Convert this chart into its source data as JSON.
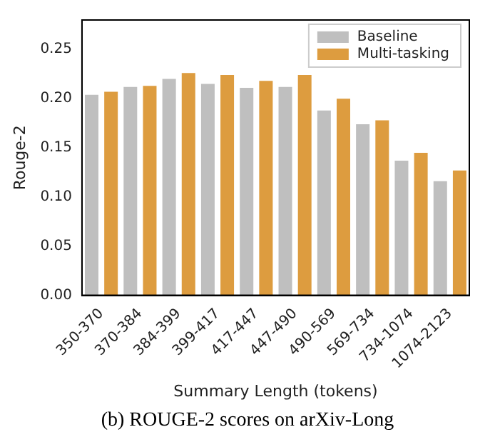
{
  "chart_data": {
    "type": "bar",
    "ylabel": "Rouge-2",
    "xlabel": "Summary Length (tokens)",
    "categories": [
      "350-370",
      "370-384",
      "384-399",
      "399-417",
      "417-447",
      "447-490",
      "490-569",
      "569-734",
      "734-1074",
      "1074-2123"
    ],
    "series": [
      {
        "name": "Baseline",
        "color": "#bfbfbf",
        "values": [
          0.204,
          0.212,
          0.22,
          0.215,
          0.211,
          0.212,
          0.188,
          0.174,
          0.137,
          0.116
        ]
      },
      {
        "name": "Multi-tasking",
        "color": "#dd9c3f",
        "values": [
          0.207,
          0.213,
          0.226,
          0.224,
          0.218,
          0.224,
          0.2,
          0.178,
          0.145,
          0.127
        ]
      }
    ],
    "ylim": [
      0,
      0.28
    ],
    "yticks": [
      {
        "value": 0,
        "label": "0.00"
      },
      {
        "value": 0.05,
        "label": "0.05"
      },
      {
        "value": 0.1,
        "label": "0.10"
      },
      {
        "value": 0.15,
        "label": "0.15"
      },
      {
        "value": 0.2,
        "label": "0.20"
      },
      {
        "value": 0.25,
        "label": "0.25"
      }
    ],
    "grid": false,
    "legend": "top right",
    "annotations": [
      "(b) ROUGE-2 scores on arXiv-Long"
    ]
  }
}
